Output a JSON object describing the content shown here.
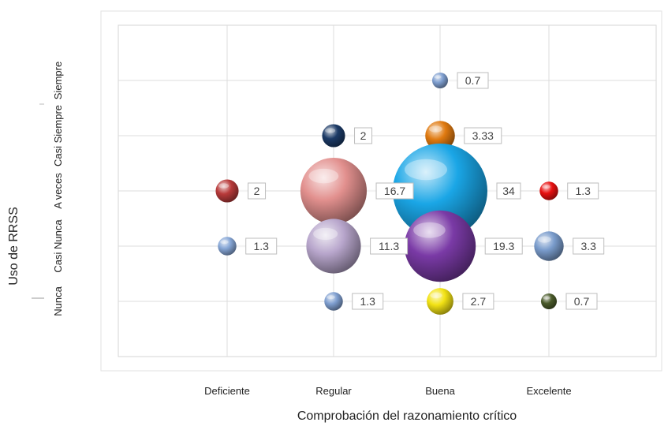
{
  "chart_data": {
    "type": "bubble",
    "title": "",
    "xlabel": "Comprobación del razonamiento crítico",
    "ylabel": "Uso de RRSS",
    "x_categories": [
      "Deficiente",
      "Regular",
      "Buena",
      "Excelente"
    ],
    "y_categories": [
      "Nunca",
      "Casi Nunca",
      "A veces",
      "Casi Siempre",
      "Siempre"
    ],
    "grid": true,
    "legend": "none",
    "points": [
      {
        "x": "Buena",
        "y": "Siempre",
        "value": 0.7,
        "label": "0.7",
        "color": "#7f9fd0"
      },
      {
        "x": "Regular",
        "y": "Casi Siempre",
        "value": 2,
        "label": "2",
        "color": "#1c3a66"
      },
      {
        "x": "Buena",
        "y": "Casi Siempre",
        "value": 3.33,
        "label": "3.33",
        "color": "#e07a10"
      },
      {
        "x": "Deficiente",
        "y": "A veces",
        "value": 2,
        "label": "2",
        "color": "#b83a3a"
      },
      {
        "x": "Regular",
        "y": "A veces",
        "value": 16.7,
        "label": "16.7",
        "color": "#e2908e"
      },
      {
        "x": "Buena",
        "y": "A veces",
        "value": 34,
        "label": "34",
        "color": "#1aa6e6"
      },
      {
        "x": "Excelente",
        "y": "A veces",
        "value": 1.3,
        "label": "1.3",
        "color": "#e81010"
      },
      {
        "x": "Deficiente",
        "y": "Casi Nunca",
        "value": 1.3,
        "label": "1.3",
        "color": "#86a6d6"
      },
      {
        "x": "Regular",
        "y": "Casi Nunca",
        "value": 11.3,
        "label": "11.3",
        "color": "#b8a6cc"
      },
      {
        "x": "Buena",
        "y": "Casi Nunca",
        "value": 19.3,
        "label": "19.3",
        "color": "#7a3aa6"
      },
      {
        "x": "Excelente",
        "y": "Casi Nunca",
        "value": 3.3,
        "label": "3.3",
        "color": "#7a9ccc"
      },
      {
        "x": "Regular",
        "y": "Nunca",
        "value": 1.3,
        "label": "1.3",
        "color": "#7f9fd0"
      },
      {
        "x": "Buena",
        "y": "Nunca",
        "value": 2.7,
        "label": "2.7",
        "color": "#f2e214"
      },
      {
        "x": "Excelente",
        "y": "Nunca",
        "value": 0.7,
        "label": "0.7",
        "color": "#4a5a2a"
      }
    ]
  }
}
